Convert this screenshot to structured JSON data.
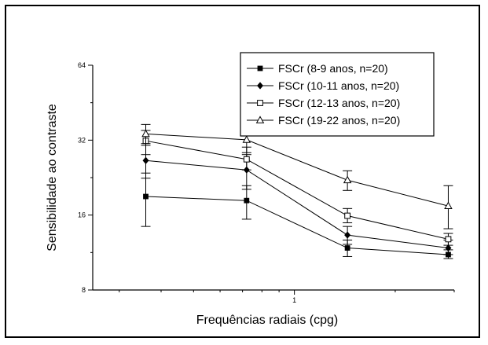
{
  "chart_data": {
    "type": "line",
    "xlabel": "Frequências radiais (cpg)",
    "ylabel": "Sensibilidade ao contraste",
    "x_scale": "log",
    "y_scale": "log2",
    "xlim": [
      0.25,
      3
    ],
    "ylim": [
      8,
      64
    ],
    "x_tick_labels": [
      {
        "value": 1,
        "label": "1"
      }
    ],
    "y_ticks": [
      8,
      16,
      32,
      64
    ],
    "grid": false,
    "legend_position": "top-right",
    "x": [
      0.36,
      0.72,
      1.44,
      2.88
    ],
    "series": [
      {
        "name": "FSCr (8-9 anos, n=20)",
        "marker": "filled-square",
        "values": [
          19.0,
          18.3,
          11.8,
          11.1
        ],
        "err_low": [
          14.4,
          15.4,
          10.9,
          10.7
        ],
        "err_high": [
          23.6,
          21.0,
          12.7,
          11.6
        ]
      },
      {
        "name": "FSCr (10-11 anos, n=20)",
        "marker": "filled-diamond",
        "values": [
          26.5,
          24.3,
          13.3,
          11.8
        ],
        "err_low": [
          22.5,
          20.3,
          12.2,
          11.1
        ],
        "err_high": [
          31.0,
          28.0,
          14.4,
          12.7
        ]
      },
      {
        "name": "FSCr (12-13 anos, n=20)",
        "marker": "open-square",
        "values": [
          31.8,
          26.8,
          15.9,
          12.8
        ],
        "err_low": [
          28.0,
          24.3,
          14.9,
          12.1
        ],
        "err_high": [
          35.0,
          30.0,
          17.0,
          13.5
        ]
      },
      {
        "name": "FSCr (19-22 anos, n=20)",
        "marker": "open-triangle",
        "values": [
          33.9,
          32.1,
          22.1,
          17.4
        ],
        "err_low": [
          30.5,
          28.5,
          20.1,
          14.1
        ],
        "err_high": [
          37.0,
          36.0,
          24.1,
          21.0
        ]
      }
    ]
  }
}
